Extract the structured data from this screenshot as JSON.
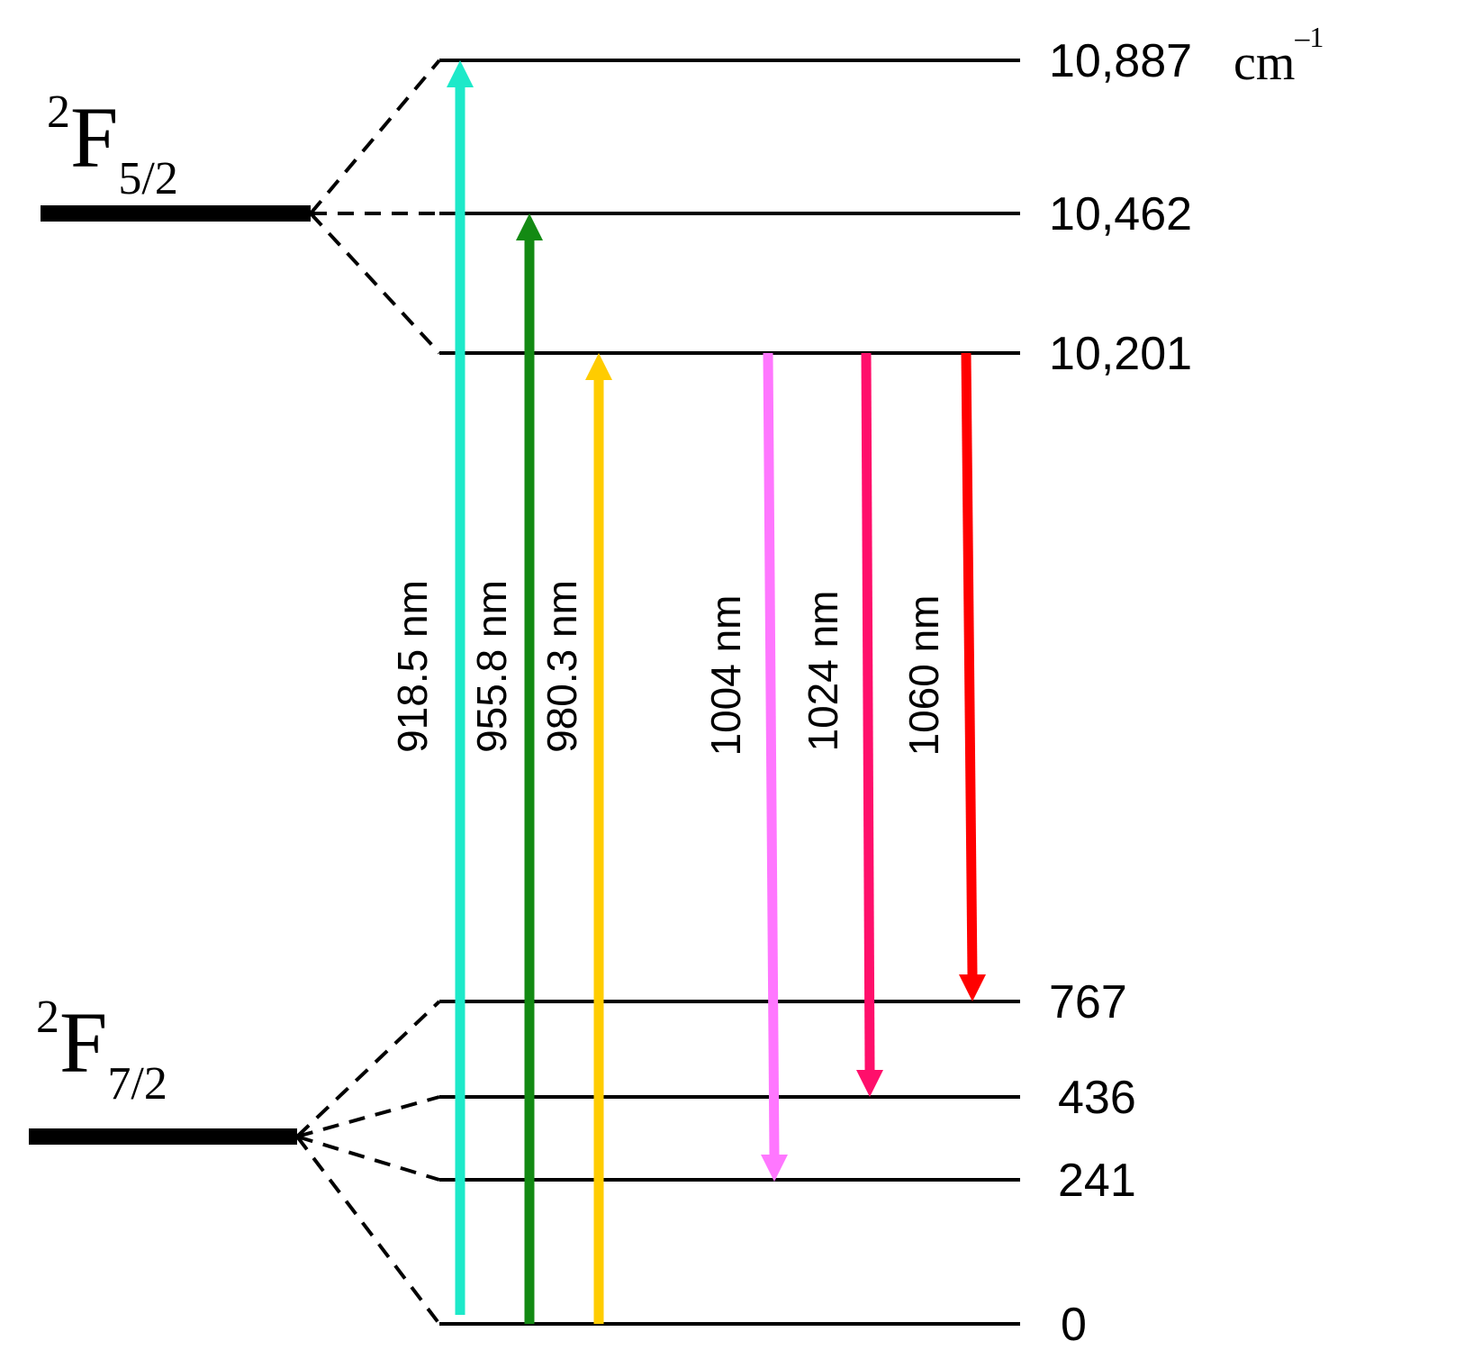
{
  "manifolds": [
    {
      "sup": "2",
      "symbol": "F",
      "sub": "5/2"
    },
    {
      "sup": "2",
      "symbol": "F",
      "sub": "7/2"
    }
  ],
  "levels": [
    {
      "label": "10,887"
    },
    {
      "label": "10,462"
    },
    {
      "label": "10,201"
    },
    {
      "label": "767"
    },
    {
      "label": "436"
    },
    {
      "label": "241"
    },
    {
      "label": "0"
    }
  ],
  "unit": {
    "base": "cm",
    "exp": "–1"
  },
  "transitions": [
    {
      "label": "918.5 nm",
      "color": "#1de9c9"
    },
    {
      "label": "955.8 nm",
      "color": "#138a13"
    },
    {
      "label": "980.3 nm",
      "color": "#ffcc00"
    },
    {
      "label": "1004 nm",
      "color": "#ff77ff"
    },
    {
      "label": "1024 nm",
      "color": "#ff0f6b"
    },
    {
      "label": "1060 nm",
      "color": "#ff0000"
    }
  ]
}
